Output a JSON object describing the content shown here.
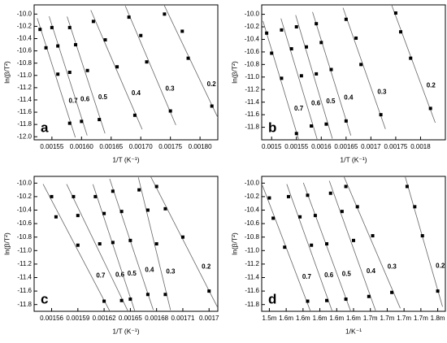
{
  "chart_data": [
    {
      "type": "scatter",
      "panel": "a",
      "x_label": "1/T (K⁻¹)",
      "y_label": "ln(β/T²)",
      "marker_color": "#000000",
      "line_color": "#666666",
      "xlim": [
        0.00152,
        0.00183
      ],
      "xticks": [
        0.00155,
        {
          "value": 0.0016,
          "label": "0.00160"
        },
        0.00165,
        {
          "value": 0.0017,
          "label": "0.00170"
        },
        0.00175,
        {
          "value": 0.0018,
          "label": "0.00180"
        }
      ],
      "ylim": [
        -12.05,
        -9.85
      ],
      "yticks": [
        {
          "value": -12,
          "label": "-12.0"
        },
        -11.8,
        -11.6,
        -11.4,
        -11.2,
        {
          "value": -11,
          "label": "-11.0"
        },
        -10.8,
        -10.6,
        -10.4,
        -10.2,
        {
          "value": -10,
          "label": "-10.0"
        }
      ],
      "series": [
        {
          "name": "0.7",
          "x": [
            0.00153,
            0.00154,
            0.00156,
            0.00158
          ],
          "values": [
            -10.25,
            -10.55,
            -10.98,
            -11.78
          ]
        },
        {
          "name": "0.6",
          "x": [
            0.00155,
            0.00156,
            0.00158,
            0.0016
          ],
          "values": [
            -10.22,
            -10.52,
            -10.95,
            -11.75
          ]
        },
        {
          "name": "0.5",
          "x": [
            0.00158,
            0.00159,
            0.00161,
            0.00163
          ],
          "values": [
            -10.22,
            -10.5,
            -10.92,
            -11.72
          ]
        },
        {
          "name": "0.4",
          "x": [
            0.00162,
            0.00164,
            0.00166,
            0.00169
          ],
          "values": [
            -10.12,
            -10.42,
            -10.86,
            -11.65
          ]
        },
        {
          "name": "0.3",
          "x": [
            0.00168,
            0.0017,
            0.00171,
            0.00175
          ],
          "values": [
            -10.05,
            -10.35,
            -10.78,
            -11.58
          ]
        },
        {
          "name": "0.2",
          "x": [
            0.00174,
            0.00177,
            0.00178,
            0.00182
          ],
          "values": [
            -10,
            -10.28,
            -10.72,
            -11.5
          ]
        }
      ]
    },
    {
      "type": "scatter",
      "panel": "b",
      "x_label": "1/T (K⁻¹)",
      "y_label": "ln(β/T²)",
      "marker_color": "#000000",
      "line_color": "#666666",
      "xlim": [
        0.00148,
        0.00185
      ],
      "xticks": [
        0.0015,
        0.00155,
        0.0016,
        0.00165,
        0.0017,
        0.00175,
        0.0018
      ],
      "ylim": [
        -12.0,
        -9.85
      ],
      "yticks": [
        -11.8,
        -11.6,
        -11.4,
        -11.2,
        {
          "value": -11,
          "label": "-11.0"
        },
        -10.8,
        -10.6,
        -10.4,
        -10.2,
        {
          "value": -10,
          "label": "-10.0"
        }
      ],
      "series": [
        {
          "name": "0.7",
          "x": [
            0.00149,
            0.0015,
            0.00152,
            0.00155
          ],
          "values": [
            -10.3,
            -10.62,
            -11.02,
            -11.9
          ]
        },
        {
          "name": "0.6",
          "x": [
            0.00152,
            0.00154,
            0.00156,
            0.00158
          ],
          "values": [
            -10.25,
            -10.55,
            -10.98,
            -11.78
          ]
        },
        {
          "name": "0.5",
          "x": [
            0.00155,
            0.00157,
            0.00159,
            0.00161
          ],
          "values": [
            -10.2,
            -10.52,
            -10.95,
            -11.75
          ]
        },
        {
          "name": "0.4",
          "x": [
            0.00159,
            0.0016,
            0.00162,
            0.00165
          ],
          "values": [
            -10.15,
            -10.45,
            -10.88,
            -11.7
          ]
        },
        {
          "name": "0.3",
          "x": [
            0.00165,
            0.00167,
            0.00168,
            0.00172
          ],
          "values": [
            -10.08,
            -10.38,
            -10.8,
            -11.6
          ]
        },
        {
          "name": "0.2",
          "x": [
            0.00175,
            0.00176,
            0.00178,
            0.00182
          ],
          "values": [
            -9.98,
            -10.28,
            -10.7,
            -11.5
          ]
        }
      ]
    },
    {
      "type": "scatter",
      "panel": "c",
      "x_label": "1/T (K⁻¹)",
      "y_label": "ln(β/T²)",
      "marker_color": "#000000",
      "line_color": "#666666",
      "xlim": [
        0.00154,
        0.00175
      ],
      "xticks": [
        0.00156,
        0.00159,
        0.00162,
        0.00165,
        0.00168,
        0.00171,
        {
          "value": 0.00174,
          "label": "0.0017"
        }
      ],
      "ylim": [
        -11.9,
        -9.9
      ],
      "yticks": [
        -11.8,
        -11.6,
        -11.4,
        -11.2,
        {
          "value": -11,
          "label": "-11.0"
        },
        -10.8,
        -10.6,
        -10.4,
        -10.2,
        {
          "value": -10,
          "label": "-10.0"
        }
      ],
      "series": [
        {
          "name": "0.7",
          "x": [
            0.00156,
            0.001565,
            0.00159,
            0.00162
          ],
          "values": [
            -10.2,
            -10.5,
            -10.92,
            -11.75
          ]
        },
        {
          "name": "0.6",
          "x": [
            0.001585,
            0.00159,
            0.001615,
            0.00164
          ],
          "values": [
            -10.2,
            -10.48,
            -10.9,
            -11.74
          ]
        },
        {
          "name": "0.5",
          "x": [
            0.00161,
            0.00162,
            0.00163,
            0.00165
          ],
          "values": [
            -10.2,
            -10.45,
            -10.88,
            -11.72
          ]
        },
        {
          "name": "0.4",
          "x": [
            0.00163,
            0.00164,
            0.00165,
            0.00167
          ],
          "values": [
            -10.12,
            -10.42,
            -10.85,
            -11.65
          ]
        },
        {
          "name": "0.3",
          "x": [
            0.00166,
            0.00167,
            0.00168,
            0.00169
          ],
          "values": [
            -10.1,
            -10.4,
            -10.9,
            -11.65
          ]
        },
        {
          "name": "0.2",
          "x": [
            0.00168,
            0.00169,
            0.00171,
            0.00174
          ],
          "values": [
            -10.05,
            -10.38,
            -10.8,
            -11.6
          ]
        }
      ]
    },
    {
      "type": "scatter",
      "panel": "d",
      "x_label": "1/K⁻¹",
      "y_label": "ln(β/T²)",
      "marker_color": "#000000",
      "line_color": "#666666",
      "xlim": [
        0.00152,
        0.00176
      ],
      "xticks": [
        {
          "value": 0.00153,
          "label": "1.5m"
        },
        {
          "value": 0.001552,
          "label": "1.6m"
        },
        {
          "value": 0.001574,
          "label": "1.6m"
        },
        {
          "value": 0.001596,
          "label": "1.6m"
        },
        {
          "value": 0.001618,
          "label": "1.6m"
        },
        {
          "value": 0.00164,
          "label": "1.6m"
        },
        {
          "value": 0.001662,
          "label": "1.7m"
        },
        {
          "value": 0.001684,
          "label": "1.7m"
        },
        {
          "value": 0.001706,
          "label": "1.7m"
        },
        {
          "value": 0.001728,
          "label": "1.7m"
        },
        {
          "value": 0.00175,
          "label": "1.8m"
        }
      ],
      "ylim": [
        -11.9,
        -9.9
      ],
      "yticks": [
        -11.8,
        -11.6,
        -11.4,
        -11.2,
        {
          "value": -11,
          "label": "-11.0"
        },
        -10.8,
        -10.6,
        -10.4,
        -10.2,
        {
          "value": -10,
          "label": "-10.0"
        }
      ],
      "series": [
        {
          "name": "0.7",
          "x": [
            0.00153,
            0.001535,
            0.00155,
            0.00158
          ],
          "values": [
            -10.22,
            -10.52,
            -10.95,
            -11.75
          ]
        },
        {
          "name": "0.6",
          "x": [
            0.001555,
            0.00157,
            0.001585,
            0.001605
          ],
          "values": [
            -10.2,
            -10.5,
            -10.92,
            -11.74
          ]
        },
        {
          "name": "0.5",
          "x": [
            0.00158,
            0.00159,
            0.001605,
            0.00163
          ],
          "values": [
            -10.18,
            -10.48,
            -10.9,
            -11.72
          ]
        },
        {
          "name": "0.4",
          "x": [
            0.00161,
            0.001625,
            0.00164,
            0.00166
          ],
          "values": [
            -10.15,
            -10.42,
            -10.85,
            -11.68
          ]
        },
        {
          "name": "0.3",
          "x": [
            0.00163,
            0.001645,
            0.001665,
            0.00169
          ],
          "values": [
            -10.05,
            -10.35,
            -10.78,
            -11.62
          ]
        },
        {
          "name": "0.2",
          "x": [
            0.00171,
            0.00172,
            0.00173,
            0.00175
          ],
          "values": [
            -10.05,
            -10.35,
            -10.78,
            -11.6
          ]
        }
      ]
    }
  ]
}
